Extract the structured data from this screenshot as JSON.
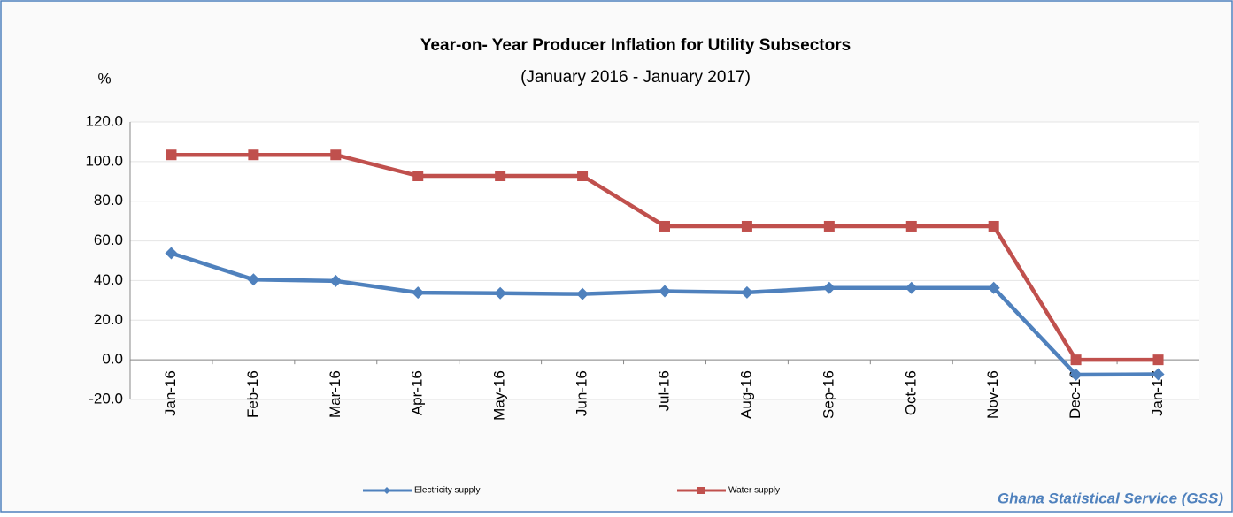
{
  "chart_data": {
    "type": "line",
    "title": "Year-on- Year Producer Inflation for Utility Subsectors",
    "subtitle": "(January 2016 - January 2017)",
    "y_label": "%",
    "source": "Ghana Statistical Service (GSS)",
    "categories": [
      "Jan-16",
      "Feb-16",
      "Mar-16",
      "Apr-16",
      "May-16",
      "Jun-16",
      "Jul-16",
      "Aug-16",
      "Sep-16",
      "Oct-16",
      "Nov-16",
      "Dec-16",
      "Jan-17"
    ],
    "series": [
      {
        "name": "Electricity supply",
        "color": "#4f81bd",
        "marker": "diamond",
        "values": [
          53.8,
          40.5,
          39.8,
          33.9,
          33.6,
          33.2,
          34.6,
          34.0,
          36.3,
          36.3,
          36.3,
          -7.5,
          -7.3
        ]
      },
      {
        "name": "Water supply",
        "color": "#c0504d",
        "marker": "square",
        "values": [
          103.4,
          103.4,
          103.4,
          92.8,
          92.8,
          92.8,
          67.4,
          67.4,
          67.4,
          67.4,
          67.4,
          0,
          0
        ]
      }
    ],
    "ylim": [
      -20,
      120
    ],
    "yticks": [
      {
        "value": -20,
        "label": "-20.0"
      },
      {
        "value": 0,
        "label": "0.0"
      },
      {
        "value": 20,
        "label": "20.0"
      },
      {
        "value": 40,
        "label": "40.0"
      },
      {
        "value": 60,
        "label": "60.0"
      },
      {
        "value": 80,
        "label": "80.0"
      },
      {
        "value": 100,
        "label": "100.0"
      },
      {
        "value": 120,
        "label": "120.0"
      }
    ],
    "grid": true,
    "legend": "bottom"
  }
}
